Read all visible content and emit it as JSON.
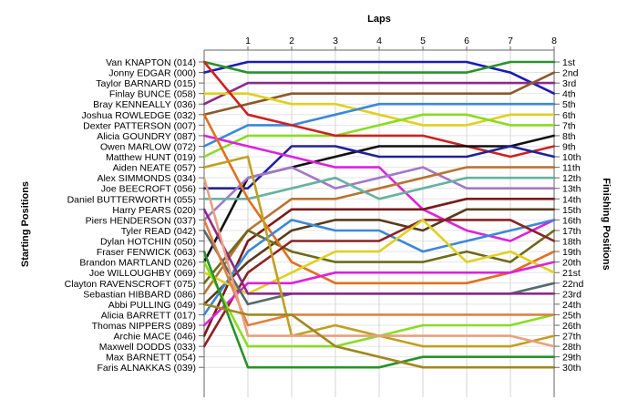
{
  "chart_data": {
    "type": "line",
    "title": "Laps",
    "ylabel_left": "Starting Positions",
    "ylabel_right": "Finishing Positions",
    "x": [
      0,
      1,
      2,
      3,
      4,
      5,
      6,
      7,
      8
    ],
    "x_tick_labels": [
      "1",
      "2",
      "3",
      "4",
      "5",
      "6",
      "7",
      "8"
    ],
    "y_inverted": true,
    "ylim": [
      1,
      30
    ],
    "grid": true,
    "start_labels": [
      "Van KNAPTON (014)",
      "Jonny EDGAR (000)",
      "Taylor BARNARD (015)",
      "Finlay BUNCE (058)",
      "Bray KENNEALLY (036)",
      "Joshua ROWLEDGE (032)",
      "Dexter PATTERSON (007)",
      "Alicia GOUNDRY (087)",
      "Owen MARLOW (072)",
      "Matthew HUNT (019)",
      "Aiden NEATE (057)",
      "Alex SIMMONDS (034)",
      "Joe BEECROFT (056)",
      "Daniel BUTTERWORTH (055)",
      "Harry PEARS (020)",
      "Piers HENDERSON (037)",
      "Tyler READ (042)",
      "Dylan HOTCHIN (050)",
      "Fraser FENWICK (063)",
      "Brandon MARTLAND (026)",
      "Joe WILLOUGHBY (069)",
      "Clayton RAVENSCROFT (075)",
      "Sebastian HIBBARD (086)",
      "Abbi PULLING (049)",
      "Alicia BARRETT (017)",
      "Thomas NIPPERS (089)",
      "Archie MACE (046)",
      "Maxwell DODDS (033)",
      "Max BARNETT (054)",
      "Faris ALNAKKAS (039)"
    ],
    "finish_labels": [
      "1st",
      "2nd",
      "3rd",
      "4th",
      "5th",
      "6th",
      "7th",
      "8th",
      "9th",
      "10th",
      "11th",
      "12th",
      "13th",
      "14th",
      "15th",
      "16th",
      "17th",
      "18th",
      "19th",
      "20th",
      "21st",
      "22nd",
      "23rd",
      "24th",
      "25th",
      "26th",
      "27th",
      "28th",
      "29th",
      "30th"
    ],
    "series": [
      {
        "color": "#1c1cb4",
        "values": [
          2,
          1,
          1,
          1,
          1,
          1,
          1,
          2,
          4
        ]
      },
      {
        "color": "#2a922a",
        "values": [
          1,
          2,
          2,
          2,
          2,
          2,
          2,
          1,
          1
        ]
      },
      {
        "color": "#8b2a8b",
        "values": [
          5,
          3,
          3,
          3,
          3,
          3,
          3,
          3,
          3
        ]
      },
      {
        "color": "#8b5a2b",
        "values": [
          6,
          5,
          4,
          4,
          4,
          4,
          4,
          4,
          2
        ]
      },
      {
        "color": "#e0d020",
        "values": [
          4,
          4,
          5,
          5,
          6,
          7,
          7,
          6,
          6
        ]
      },
      {
        "color": "#3a88d8",
        "values": [
          9,
          7,
          7,
          6,
          5,
          5,
          5,
          5,
          5
        ]
      },
      {
        "color": "#88dd22",
        "values": [
          10,
          8,
          8,
          8,
          7,
          6,
          6,
          7,
          7
        ]
      },
      {
        "color": "#cc2222",
        "values": [
          1,
          6,
          7,
          8,
          8,
          8,
          9,
          10,
          9
        ]
      },
      {
        "color": "#111111",
        "values": [
          20,
          12,
          11,
          10,
          9,
          9,
          9,
          9,
          8
        ]
      },
      {
        "color": "#22229a",
        "values": [
          13,
          13,
          9,
          9,
          10,
          10,
          10,
          9,
          10
        ]
      },
      {
        "color": "#dd22dd",
        "values": [
          8,
          9,
          10,
          11,
          11,
          15,
          17,
          18,
          16
        ]
      },
      {
        "color": "#a278c8",
        "values": [
          16,
          12,
          11,
          13,
          12,
          11,
          13,
          13,
          13
        ]
      },
      {
        "color": "#b87333",
        "values": [
          23,
          17,
          14,
          14,
          13,
          12,
          11,
          11,
          11
        ]
      },
      {
        "color": "#66b2a0",
        "values": [
          14,
          14,
          13,
          12,
          14,
          13,
          12,
          12,
          12
        ]
      },
      {
        "color": "#7a1a1a",
        "values": [
          27,
          18,
          15,
          15,
          15,
          15,
          14,
          14,
          14
        ]
      },
      {
        "color": "#5a3a1a",
        "values": [
          24,
          20,
          17,
          16,
          16,
          17,
          15,
          15,
          15
        ]
      },
      {
        "color": "#6b6b1a",
        "values": [
          22,
          17,
          19,
          20,
          20,
          20,
          19,
          20,
          17
        ]
      },
      {
        "color": "#e07020",
        "values": [
          6,
          14,
          20,
          22,
          22,
          22,
          22,
          21,
          19
        ]
      },
      {
        "color": "#3a88d8",
        "values": [
          25,
          19,
          16,
          17,
          17,
          19,
          18,
          17,
          16
        ]
      },
      {
        "color": "#8b2222",
        "values": [
          28,
          21,
          18,
          18,
          18,
          16,
          16,
          16,
          18
        ]
      },
      {
        "color": "#e0d020",
        "values": [
          21,
          23,
          21,
          19,
          19,
          16,
          20,
          19,
          21
        ]
      },
      {
        "color": "#dd22dd",
        "values": [
          26,
          22,
          22,
          21,
          21,
          21,
          21,
          21,
          20
        ]
      },
      {
        "color": "#556b6b",
        "values": [
          17,
          24,
          23,
          23,
          23,
          23,
          23,
          23,
          22
        ]
      },
      {
        "color": "#8b2a8b",
        "values": [
          15,
          23,
          23,
          23,
          23,
          23,
          23,
          23,
          23
        ]
      },
      {
        "color": "#c0a020",
        "values": [
          11,
          10,
          27,
          26,
          27,
          28,
          28,
          28,
          27
        ]
      },
      {
        "color": "#88dd22",
        "values": [
          20,
          28,
          28,
          28,
          27,
          26,
          26,
          26,
          25
        ]
      },
      {
        "color": "#e08040",
        "values": [
          16,
          26,
          25,
          25,
          25,
          25,
          25,
          25,
          25
        ]
      },
      {
        "color": "#e8a080",
        "values": [
          12,
          27,
          27,
          27,
          27,
          27,
          27,
          27,
          28
        ]
      },
      {
        "color": "#2a922a",
        "values": [
          19,
          30,
          30,
          30,
          30,
          29,
          29,
          29,
          29
        ]
      },
      {
        "color": "#a08820",
        "values": [
          24,
          25,
          25,
          28,
          29,
          30,
          30,
          30,
          30
        ]
      }
    ]
  }
}
